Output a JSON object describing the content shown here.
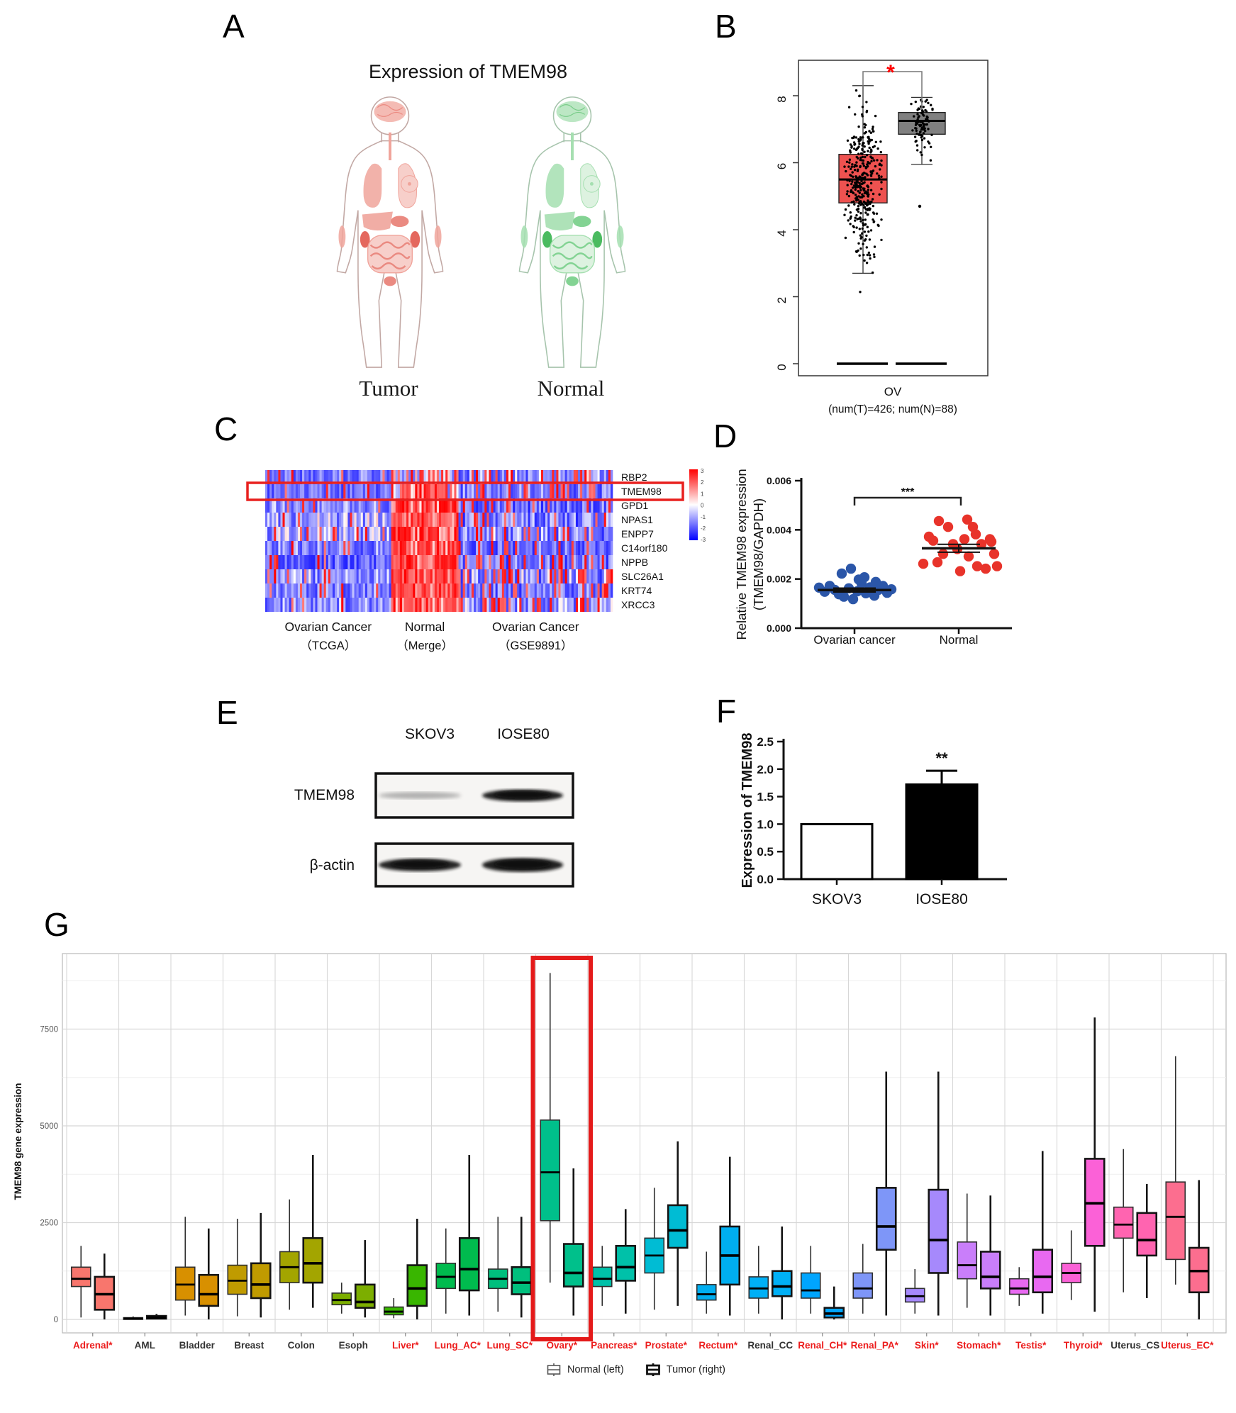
{
  "panels": {
    "a": {
      "letter": "A",
      "title": "Expression of  TMEM98",
      "tumor_label": "Tumor",
      "normal_label": "Normal",
      "tumor_palette": {
        "outline": "#c2a8a4",
        "light": "#f7cfca",
        "mid": "#f0a49b",
        "strong": "#e4685e",
        "accent": "#ea8a81"
      },
      "normal_palette": {
        "outline": "#a6c4ac",
        "light": "#ddf2e0",
        "mid": "#a5dfb0",
        "strong": "#4bbb60",
        "accent": "#83d393"
      }
    },
    "b": {
      "letter": "B"
    },
    "c": {
      "letter": "C"
    },
    "d": {
      "letter": "D"
    },
    "e": {
      "letter": "E",
      "lane1": "SKOV3",
      "lane2": "IOSE80",
      "row1": "TMEM98",
      "row2": "β-actin",
      "band_intensity": [
        [
          0.38,
          0.95
        ],
        [
          0.93,
          0.96
        ]
      ]
    },
    "f": {
      "letter": "F"
    },
    "g": {
      "letter": "G"
    }
  },
  "chart_data": [
    {
      "panel": "B",
      "type": "boxplot",
      "xlabel": "OV",
      "sublabel": "(num(T)=426; num(N)=88)",
      "ylim": [
        0,
        9
      ],
      "yticks": [
        0,
        2,
        4,
        6,
        8
      ],
      "significance": "*",
      "significance_color": "#ff0000",
      "groups": [
        {
          "name": "Tumor",
          "n": 426,
          "color": "#EE5250",
          "box": {
            "lo": 2.7,
            "q1": 4.8,
            "median": 5.5,
            "q3": 6.25,
            "hi": 8.3
          },
          "jitter": {
            "n": 360,
            "mean": 5.45,
            "sd": 1.05,
            "min": 1.25,
            "max": 8.3
          },
          "zero_line": true
        },
        {
          "name": "Normal",
          "n": 88,
          "color": "#808080",
          "box": {
            "lo": 5.95,
            "q1": 6.85,
            "median": 7.25,
            "q3": 7.5,
            "hi": 7.95
          },
          "outliers": [
            4.7
          ],
          "jitter": {
            "n": 85,
            "mean": 7.15,
            "sd": 0.42,
            "min": 5.92,
            "max": 7.95
          },
          "zero_line": true
        }
      ]
    },
    {
      "panel": "C",
      "type": "heatmap",
      "genes": [
        "RBP2",
        "TMEM98",
        "GPD1",
        "NPAS1",
        "ENPP7",
        "C14orf180",
        "NPPB",
        "SLC26A1",
        "KRT74",
        "XRCC3"
      ],
      "highlight_gene": "TMEM98",
      "col_groups": [
        {
          "label": "Ovarian Cancer",
          "sublabel": "（TCGA）",
          "cols": 58
        },
        {
          "label": "Normal",
          "sublabel": "（Merge）",
          "cols": 31
        },
        {
          "label": "Ovarian Cancer",
          "sublabel": "（GSE9891）",
          "cols": 71
        }
      ],
      "colorbar_ticks": [
        "3",
        "2",
        "1",
        "0",
        "-1",
        "-2",
        "-3"
      ],
      "scale": {
        "pos": "#ff0000",
        "zero": "#ffffff",
        "neg": "#0000ff"
      },
      "row_group_bias": [
        [
          [
            -1.3,
            0.9,
            0.1
          ],
          [
            -0.4,
            1.4,
            0.4
          ],
          [
            -1.0,
            1.2,
            0.22
          ]
        ],
        [
          [
            -1.5,
            0.8,
            0.1
          ],
          [
            0.0,
            1.6,
            0.45
          ],
          [
            -1.3,
            1.0,
            0.18
          ]
        ],
        [
          [
            -1.1,
            1.0,
            0.13
          ],
          [
            1.4,
            1.4,
            0.55
          ],
          [
            -1.5,
            1.1,
            0.16
          ]
        ],
        [
          [
            -0.8,
            1.2,
            0.16
          ],
          [
            1.7,
            1.2,
            0.6
          ],
          [
            -1.3,
            1.2,
            0.2
          ]
        ],
        [
          [
            -0.9,
            1.1,
            0.14
          ],
          [
            1.6,
            1.3,
            0.58
          ],
          [
            -1.2,
            1.2,
            0.22
          ]
        ],
        [
          [
            -1.2,
            1.0,
            0.12
          ],
          [
            1.5,
            1.3,
            0.55
          ],
          [
            -1.4,
            1.0,
            0.18
          ]
        ],
        [
          [
            -1.6,
            0.9,
            0.1
          ],
          [
            1.4,
            1.4,
            0.5
          ],
          [
            -1.5,
            1.1,
            0.22
          ]
        ],
        [
          [
            -1.0,
            1.1,
            0.14
          ],
          [
            1.5,
            1.3,
            0.55
          ],
          [
            -1.1,
            1.3,
            0.25
          ]
        ],
        [
          [
            -1.2,
            1.0,
            0.12
          ],
          [
            1.6,
            1.2,
            0.55
          ],
          [
            -1.3,
            1.1,
            0.2
          ]
        ],
        [
          [
            -1.1,
            1.0,
            0.13
          ],
          [
            1.5,
            1.3,
            0.55
          ],
          [
            -1.0,
            1.2,
            0.28
          ]
        ]
      ]
    },
    {
      "panel": "D",
      "type": "scatter",
      "ylabel_line1": "Relative TMEM98 expression",
      "ylabel_line2": "(TMEM98/GAPDH)",
      "yticks": [
        "0.000",
        "0.002",
        "0.004",
        "0.006"
      ],
      "ymax": 0.006,
      "significance": "***",
      "groups": [
        {
          "label": "Ovarian cancer",
          "color": "#2B56A8",
          "mean": 0.00155,
          "sem": 8e-05,
          "points": [
            [
              -50,
              0.00165
            ],
            [
              -42,
              0.00148
            ],
            [
              -35,
              0.00172
            ],
            [
              -28,
              0.00156
            ],
            [
              -22,
              0.00138
            ],
            [
              -15,
              0.00128
            ],
            [
              -8,
              0.00162
            ],
            [
              -2,
              0.00118
            ],
            [
              4,
              0.0015
            ],
            [
              10,
              0.00182
            ],
            [
              16,
              0.00142
            ],
            [
              22,
              0.00166
            ],
            [
              28,
              0.00132
            ],
            [
              34,
              0.00156
            ],
            [
              40,
              0.00172
            ],
            [
              46,
              0.00144
            ],
            [
              52,
              0.00158
            ],
            [
              -18,
              0.00222
            ],
            [
              -5,
              0.00242
            ],
            [
              6,
              0.00198
            ],
            [
              14,
              0.00207
            ],
            [
              30,
              0.00188
            ]
          ]
        },
        {
          "label": "Normal",
          "color": "#E8332A",
          "mean": 0.00325,
          "sem": 0.00016,
          "points": [
            [
              -50,
              0.00262
            ],
            [
              -42,
              0.00372
            ],
            [
              -36,
              0.00356
            ],
            [
              -28,
              0.00436
            ],
            [
              -22,
              0.00302
            ],
            [
              -15,
              0.00412
            ],
            [
              -8,
              0.00342
            ],
            [
              -2,
              0.00322
            ],
            [
              2,
              0.00232
            ],
            [
              8,
              0.00362
            ],
            [
              14,
              0.00292
            ],
            [
              20,
              0.00412
            ],
            [
              26,
              0.00252
            ],
            [
              32,
              0.00342
            ],
            [
              38,
              0.00242
            ],
            [
              44,
              0.00362
            ],
            [
              50,
              0.00302
            ],
            [
              54,
              0.00252
            ],
            [
              -30,
              0.00268
            ],
            [
              12,
              0.00442
            ],
            [
              24,
              0.00382
            ],
            [
              46,
              0.00352
            ]
          ]
        }
      ]
    },
    {
      "panel": "F",
      "type": "bar",
      "ylabel": "Expression of TMEM98",
      "yticks": [
        "0.0",
        "0.5",
        "1.0",
        "1.5",
        "2.0",
        "2.5"
      ],
      "ymax": 2.5,
      "bars": [
        {
          "label": "SKOV3",
          "value": 1.0,
          "err_hi": 0,
          "fill": "#ffffff",
          "sig": ""
        },
        {
          "label": "IOSE80",
          "value": 1.72,
          "err_hi": 0.25,
          "fill": "#000000",
          "sig": "**"
        }
      ]
    },
    {
      "panel": "G",
      "type": "boxplot-grouped",
      "ylabel": "TMEM98 gene expression",
      "yticks": [
        0,
        2500,
        5000,
        7500
      ],
      "ylim": [
        0,
        9450
      ],
      "legend": [
        "Normal (left)",
        "Tumor (right)"
      ],
      "highlight": "Ovary*",
      "highlight_color": "#e41a1a",
      "label_red_color": "#ec1c1c",
      "categories": [
        {
          "label": "Adrenal*",
          "red": true,
          "color": "#F8766D",
          "normal": [
            50,
            850,
            1050,
            1350,
            1900
          ],
          "tumor": [
            0,
            250,
            650,
            1100,
            1700
          ]
        },
        {
          "label": "AML",
          "red": false,
          "color": "#EB8335",
          "normal": [
            0,
            10,
            25,
            45,
            80
          ],
          "tumor": [
            0,
            20,
            50,
            90,
            140
          ]
        },
        {
          "label": "Bladder",
          "red": false,
          "color": "#D89000",
          "normal": [
            100,
            500,
            900,
            1350,
            2650
          ],
          "tumor": [
            0,
            350,
            650,
            1150,
            2350
          ]
        },
        {
          "label": "Breast",
          "red": false,
          "color": "#C09B00",
          "normal": [
            80,
            650,
            1000,
            1400,
            2600
          ],
          "tumor": [
            50,
            550,
            900,
            1450,
            2750
          ]
        },
        {
          "label": "Colon",
          "red": false,
          "color": "#A3A500",
          "normal": [
            250,
            950,
            1350,
            1750,
            3100
          ],
          "tumor": [
            300,
            950,
            1450,
            2100,
            4250
          ]
        },
        {
          "label": "Esoph",
          "red": false,
          "color": "#7CAE00",
          "normal": [
            150,
            380,
            500,
            680,
            950
          ],
          "tumor": [
            50,
            300,
            450,
            900,
            2050
          ]
        },
        {
          "label": "Liver*",
          "red": true,
          "color": "#39B600",
          "normal": [
            30,
            120,
            200,
            320,
            550
          ],
          "tumor": [
            0,
            350,
            800,
            1400,
            2600
          ]
        },
        {
          "label": "Lung_AC*",
          "red": true,
          "color": "#00BB4E",
          "normal": [
            150,
            800,
            1100,
            1450,
            2350
          ],
          "tumor": [
            100,
            750,
            1300,
            2100,
            4250
          ]
        },
        {
          "label": "Lung_SC*",
          "red": true,
          "color": "#00BF7D",
          "normal": [
            200,
            800,
            1050,
            1300,
            2650
          ],
          "tumor": [
            50,
            650,
            950,
            1350,
            2650
          ]
        },
        {
          "label": "Ovary*",
          "red": true,
          "color": "#00C08B",
          "normal": [
            950,
            2550,
            3800,
            5150,
            8950
          ],
          "tumor": [
            100,
            850,
            1200,
            1950,
            3900
          ]
        },
        {
          "label": "Pancreas*",
          "red": true,
          "color": "#00C1A9",
          "normal": [
            350,
            850,
            1050,
            1350,
            1900
          ],
          "tumor": [
            150,
            1000,
            1350,
            1900,
            2850
          ]
        },
        {
          "label": "Prostate*",
          "red": true,
          "color": "#00BCD4",
          "normal": [
            250,
            1200,
            1650,
            2100,
            3400
          ],
          "tumor": [
            350,
            1850,
            2300,
            2950,
            4600
          ]
        },
        {
          "label": "Rectum*",
          "red": true,
          "color": "#00AEF0",
          "normal": [
            150,
            500,
            650,
            900,
            1750
          ],
          "tumor": [
            100,
            900,
            1650,
            2400,
            4200
          ]
        },
        {
          "label": "Renal_CC",
          "red": false,
          "color": "#00B0F6",
          "normal": [
            150,
            550,
            800,
            1100,
            1900
          ],
          "tumor": [
            0,
            600,
            850,
            1250,
            2400
          ]
        },
        {
          "label": "Renal_CH*",
          "red": true,
          "color": "#00A5FF",
          "normal": [
            150,
            550,
            750,
            1200,
            1900
          ],
          "tumor": [
            0,
            50,
            150,
            300,
            850
          ]
        },
        {
          "label": "Renal_PA*",
          "red": true,
          "color": "#7E96F8",
          "normal": [
            150,
            550,
            800,
            1200,
            1950
          ],
          "tumor": [
            100,
            1800,
            2400,
            3400,
            6400
          ]
        },
        {
          "label": "Skin*",
          "red": true,
          "color": "#A689FC",
          "normal": [
            150,
            450,
            600,
            800,
            1300
          ],
          "tumor": [
            100,
            1200,
            2050,
            3350,
            6400
          ]
        },
        {
          "label": "Stomach*",
          "red": true,
          "color": "#C97EFA",
          "normal": [
            300,
            1050,
            1400,
            2000,
            3250
          ],
          "tumor": [
            100,
            800,
            1100,
            1750,
            3200
          ]
        },
        {
          "label": "Testis*",
          "red": true,
          "color": "#E869F1",
          "normal": [
            350,
            650,
            800,
            1050,
            1350
          ],
          "tumor": [
            150,
            700,
            1100,
            1800,
            4350
          ]
        },
        {
          "label": "Thyroid*",
          "red": true,
          "color": "#FB61D7",
          "normal": [
            500,
            950,
            1200,
            1450,
            2300
          ],
          "tumor": [
            200,
            1900,
            3000,
            4150,
            7800
          ]
        },
        {
          "label": "Uterus_CS",
          "red": false,
          "color": "#FF64B0",
          "normal": [
            700,
            2100,
            2450,
            2900,
            4400
          ],
          "tumor": [
            550,
            1650,
            2050,
            2750,
            3500
          ]
        },
        {
          "label": "Uterus_EC*",
          "red": true,
          "color": "#FC6E8F",
          "normal": [
            900,
            1550,
            2650,
            3550,
            6800
          ],
          "tumor": [
            0,
            700,
            1250,
            1850,
            3600
          ]
        }
      ]
    }
  ]
}
